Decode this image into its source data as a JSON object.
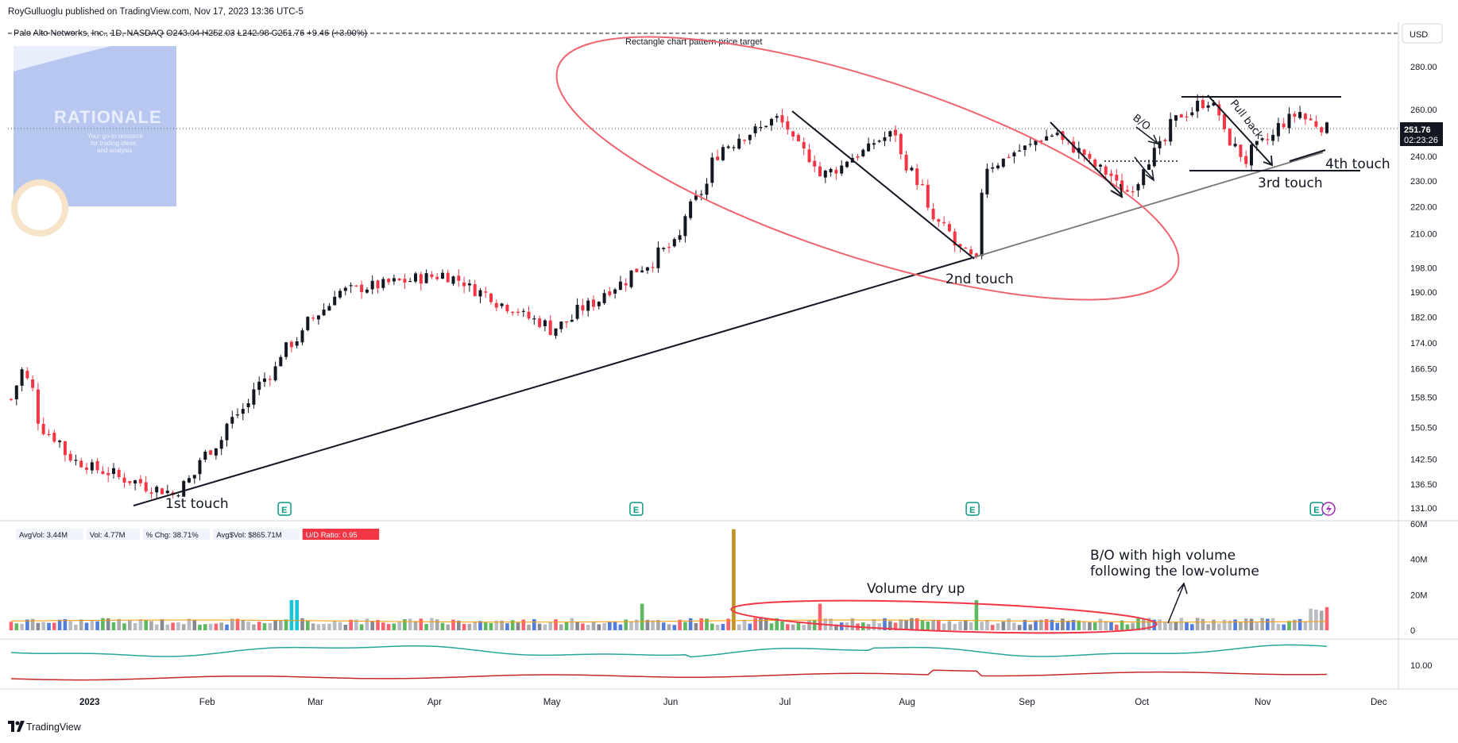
{
  "header": {
    "published_line": "RoyGulluoglu published on TradingView.com, Nov 17, 2023 13:36 UTC-5",
    "symbol_line": "Palo Alto Networks, Inc., 1D, NASDAQ  O243.04  H252.03  L242.98  C251.76  +9.46 (+3.90%)",
    "chart_note": "Rectangle chart pattern price target",
    "currency": "USD"
  },
  "logo": {
    "title": "RATIONALE",
    "tagline_1": "Your go-to resource",
    "tagline_2": "for trading ideas",
    "tagline_3": "and analysis"
  },
  "price_tag": {
    "price": "251.76",
    "countdown": "02:23:26"
  },
  "annotations": {
    "touch1": "1st touch",
    "touch2": "2nd touch",
    "touch3": "3rd touch",
    "touch4": "4th touch",
    "bo": "B/O",
    "pullback": "Pull back",
    "volume_dry": "Volume dry up",
    "bo_volume_1": "B/O with high volume",
    "bo_volume_2": "following the low-volume"
  },
  "stats": [
    {
      "label": "AvgVol: 3.44M",
      "color": "#f0f3fa",
      "text": "#131722"
    },
    {
      "label": "Vol: 4.77M",
      "color": "#f0f3fa",
      "text": "#131722"
    },
    {
      "label": "% Chg: 38.71%",
      "color": "#f0f3fa",
      "text": "#131722"
    },
    {
      "label": "Avg$Vol: $865.71M",
      "color": "#f0f3fa",
      "text": "#131722"
    },
    {
      "label": "U/D Ratio: 0.95",
      "color": "#f23645",
      "text": "#ffffff"
    }
  ],
  "footer": {
    "brand": "TradingView"
  },
  "colors": {
    "up": "#131722",
    "down": "#f23645",
    "trendline": "#131722",
    "ellipse": "#f23645",
    "accent_teal": "#26a69a",
    "logo_bg": "#b8c7f0"
  },
  "chart_data": {
    "type": "candlestick",
    "price_axis_labels": [
      "280.00",
      "260.00",
      "251.76",
      "240.00",
      "230.00",
      "220.00",
      "210.00",
      "198.00",
      "190.00",
      "182.00",
      "174.00",
      "166.50",
      "158.50",
      "150.50",
      "142.50",
      "136.50",
      "131.00"
    ],
    "volume_axis_labels": [
      "60M",
      "40M",
      "20M",
      "0"
    ],
    "indicator_axis_label": "10.00",
    "x_tick_labels": [
      "2023",
      "Feb",
      "Mar",
      "Apr",
      "May",
      "Jun",
      "Jul",
      "Aug",
      "Sep",
      "Oct",
      "Nov",
      "Dec"
    ],
    "price_scale": "log",
    "ylim": [
      131,
      285
    ],
    "earnings_markers": [
      "E",
      "E",
      "E",
      "E"
    ],
    "key_points": [
      {
        "date": "2023-01-23",
        "close": 134
      },
      {
        "date": "2023-02-22",
        "close": 174
      },
      {
        "date": "2023-03-06",
        "close": 190
      },
      {
        "date": "2023-04-03",
        "close": 196
      },
      {
        "date": "2023-05-01",
        "close": 178
      },
      {
        "date": "2023-06-01",
        "close": 206
      },
      {
        "date": "2023-06-14",
        "close": 244
      },
      {
        "date": "2023-06-28",
        "close": 256
      },
      {
        "date": "2023-07-10",
        "close": 232
      },
      {
        "date": "2023-07-28",
        "close": 250
      },
      {
        "date": "2023-08-08",
        "close": 215
      },
      {
        "date": "2023-08-18",
        "close": 200
      },
      {
        "date": "2023-08-22",
        "close": 236
      },
      {
        "date": "2023-09-08",
        "close": 250
      },
      {
        "date": "2023-09-27",
        "close": 226
      },
      {
        "date": "2023-10-11",
        "close": 258
      },
      {
        "date": "2023-10-18",
        "close": 264
      },
      {
        "date": "2023-10-27",
        "close": 238
      },
      {
        "date": "2023-11-10",
        "close": 259
      },
      {
        "date": "2023-11-17",
        "close": 251.76
      }
    ],
    "volume_millions_peak": 57
  }
}
